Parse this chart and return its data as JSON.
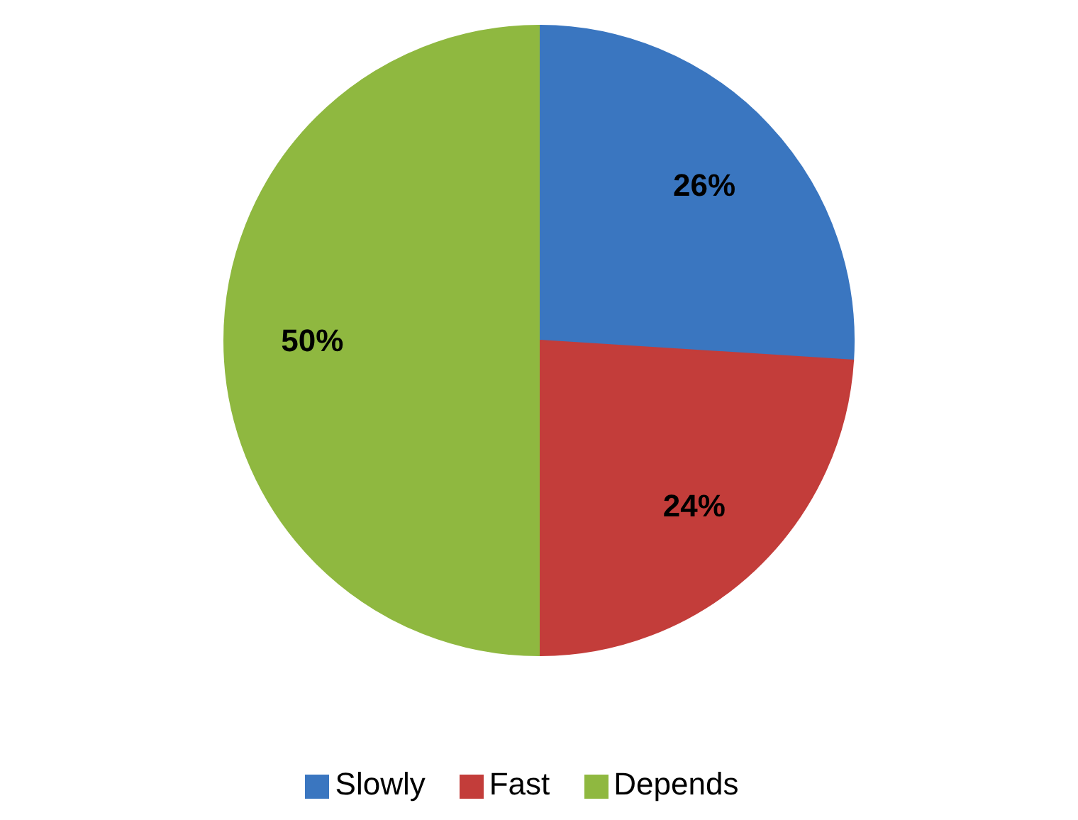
{
  "chart_data": {
    "type": "pie",
    "categories": [
      "Slowly",
      "Fast",
      "Depends"
    ],
    "values": [
      26,
      24,
      50
    ],
    "colors": [
      "#3a76c0",
      "#c33d3a",
      "#8fb840"
    ],
    "value_labels": [
      "26%",
      "24%",
      "50%"
    ],
    "legend": "bottom"
  }
}
